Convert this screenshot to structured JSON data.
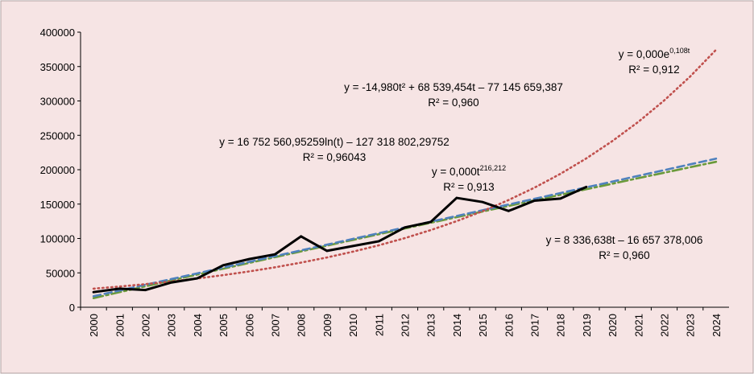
{
  "chart_data": {
    "type": "line",
    "categories": [
      "2000",
      "2001",
      "2002",
      "2003",
      "2004",
      "2005",
      "2006",
      "2007",
      "2008",
      "2009",
      "2010",
      "2011",
      "2012",
      "2013",
      "2014",
      "2015",
      "2016",
      "2017",
      "2018",
      "2019",
      "2020",
      "2021",
      "2022",
      "2023",
      "2024"
    ],
    "series": [
      {
        "color": "#000000",
        "style": "solid",
        "values": [
          22000,
          27000,
          25000,
          36000,
          42000,
          61000,
          70000,
          77000,
          103000,
          82000,
          89000,
          96000,
          116000,
          124000,
          159000,
          153000,
          140000,
          155000,
          158000,
          175000,
          null,
          null,
          null,
          null,
          null
        ]
      },
      {
        "color": "#c0504d",
        "style": "dotted",
        "values": [
          27000,
          30100,
          33600,
          37500,
          41800,
          46700,
          52100,
          58100,
          64900,
          72400,
          80800,
          90100,
          100500,
          112200,
          125200,
          139700,
          155900,
          173900,
          194000,
          216500,
          241600,
          269500,
          300700,
          335500,
          374400
        ]
      },
      {
        "color": "#4f81bd",
        "style": "dashed",
        "values": [
          16000,
          24300,
          32700,
          41000,
          49300,
          57700,
          66000,
          74400,
          82700,
          91000,
          99400,
          107700,
          116000,
          124400,
          132700,
          141100,
          149400,
          157700,
          166100,
          174400,
          182700,
          191100,
          199400,
          207800,
          216100
        ]
      },
      {
        "color": "#6a9a3a",
        "style": "dashdot",
        "values": [
          13200,
          21900,
          30400,
          39000,
          47500,
          56000,
          64400,
          72900,
          81200,
          89600,
          97900,
          106200,
          114500,
          122800,
          131000,
          139200,
          147300,
          155500,
          163500,
          171600,
          179600,
          187700,
          195600,
          203600,
          211500
        ]
      }
    ],
    "ylim": [
      0,
      400000
    ],
    "yticks": [
      0,
      50000,
      100000,
      150000,
      200000,
      250000,
      300000,
      350000,
      400000
    ],
    "annotations": [
      {
        "lines": [
          {
            "text": "y = 0,000e",
            "sup": "0,108t"
          },
          {
            "text": "R² = 0,912"
          }
        ]
      },
      {
        "lines": [
          {
            "text": "y = -14,980t² + 68 539,454t – 77 145 659,387"
          },
          {
            "text": "R² = 0,960"
          }
        ]
      },
      {
        "lines": [
          {
            "text": "y = 16 752 560,95259ln(t) – 127 318 802,29752"
          },
          {
            "text": "R² = 0,96043"
          }
        ]
      },
      {
        "lines": [
          {
            "text": "y = 0,000t",
            "sup": "216,212"
          },
          {
            "text": "R² = 0,913"
          }
        ]
      },
      {
        "lines": [
          {
            "text": "y = 8 336,638t – 16 657 378,006"
          },
          {
            "text": "R² = 0,960"
          }
        ]
      }
    ]
  }
}
